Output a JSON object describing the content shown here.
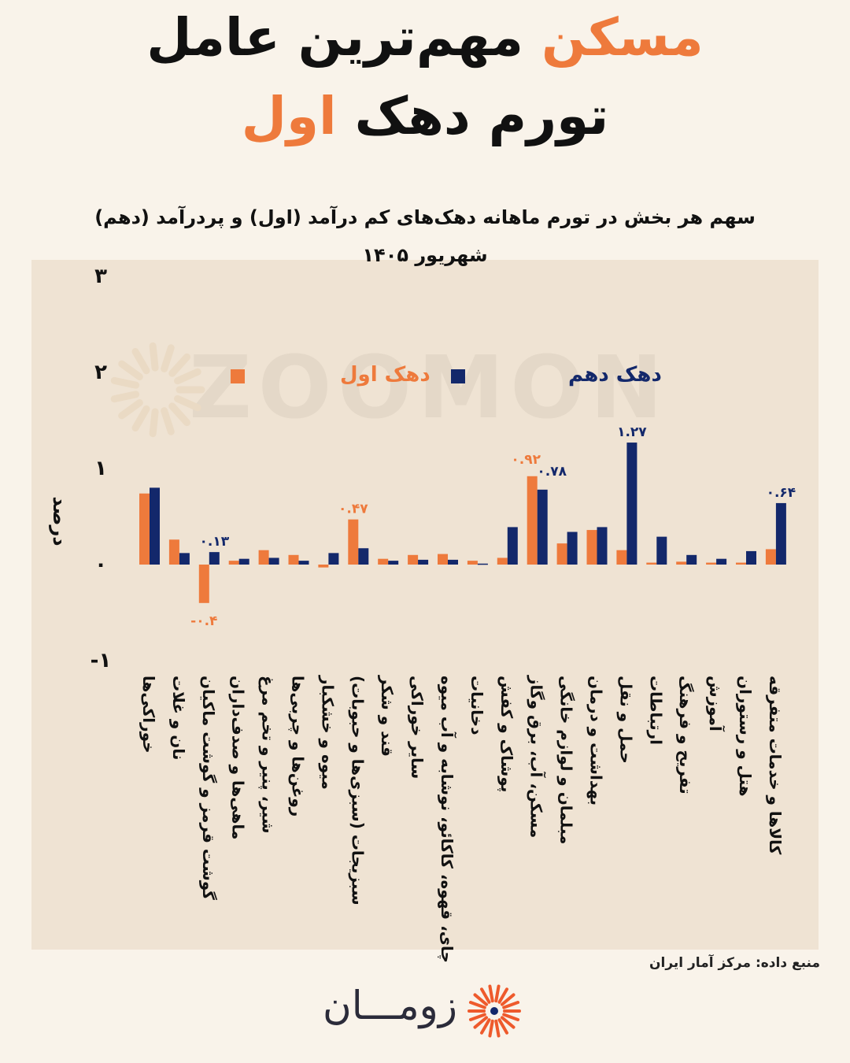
{
  "title": {
    "line1_accent": "مسکن",
    "line1_rest": "مهم‌ترین عامل",
    "line2_rest": "تورم دهک",
    "line2_accent": "اول"
  },
  "subtitle": {
    "line1": "سهم  هر بخش در تورم ماهانه دهک‌های کم درآمد (اول) و پردرآمد (دهم)",
    "line2": "شهریور ۱۴۰۵"
  },
  "watermark": "ZOOMON",
  "source": "منبع داده: مرکز آمار ایران",
  "brand": {
    "name": "زومـــان"
  },
  "colors": {
    "first_decile": "#ee7a3c",
    "tenth_decile": "#13286b",
    "text_dark": "#111111"
  },
  "chart_data": {
    "type": "bar",
    "ylabel": "درصد",
    "ylim": [
      -1,
      3
    ],
    "yticks": [
      -1,
      0,
      1,
      2,
      3
    ],
    "ytick_labels": [
      "-۱",
      "۰",
      "۱",
      "۲",
      "۳"
    ],
    "legend_position": "top",
    "grid": false,
    "categories": [
      "خوراکی‌ها",
      "نان و غلات",
      "گوشت قرمز و گوشت ماکیان",
      "ماهی‌ها و صدف‌داران",
      "شیر، پنیر و تخم مرغ",
      "روغن‌ها و چربی‌ها",
      "میوه و خشکبار",
      "سبزیجات (سبزی‌ها و حبوبات)",
      "قند و شکر",
      "سایر خوراکی",
      "چای، قهوه، کاکائو، نوشابه و آب میوه",
      "دخانیات",
      "پوشاک و کفش",
      "مسکن، آب، برق وگاز",
      "مبلمان و لوازم خانگی",
      "بهداشت و درمان",
      "حمل و نقل",
      "ارتباطات",
      "تفریح و فرهنگ",
      "آموزش",
      "هتل و رستوران",
      "کالاها و خدمات متفرقه"
    ],
    "series": [
      {
        "name": "دهک اول",
        "color": "#ee7a3c",
        "values": [
          0.74,
          0.26,
          -0.4,
          0.04,
          0.15,
          0.1,
          -0.03,
          0.47,
          0.06,
          0.1,
          0.11,
          0.04,
          0.07,
          0.92,
          0.22,
          0.36,
          0.15,
          0.02,
          0.03,
          0.02,
          0.02,
          0.16
        ],
        "data_labels": [
          {
            "index": 2,
            "text": "-۰.۴"
          },
          {
            "index": 7,
            "text": "۰.۴۷"
          },
          {
            "index": 13,
            "text": "۰.۹۲"
          }
        ]
      },
      {
        "name": "دهک دهم",
        "color": "#13286b",
        "values": [
          0.8,
          0.12,
          0.13,
          0.06,
          0.07,
          0.04,
          0.12,
          0.17,
          0.04,
          0.05,
          0.05,
          0.01,
          0.39,
          0.78,
          0.34,
          0.39,
          1.27,
          0.29,
          0.1,
          0.06,
          0.14,
          0.64
        ],
        "data_labels": [
          {
            "index": 2,
            "text": "۰.۱۳"
          },
          {
            "index": 13,
            "text": "۰.۷۸"
          },
          {
            "index": 16,
            "text": "۱.۲۷"
          },
          {
            "index": 21,
            "text": "۰.۶۴"
          }
        ]
      }
    ]
  }
}
